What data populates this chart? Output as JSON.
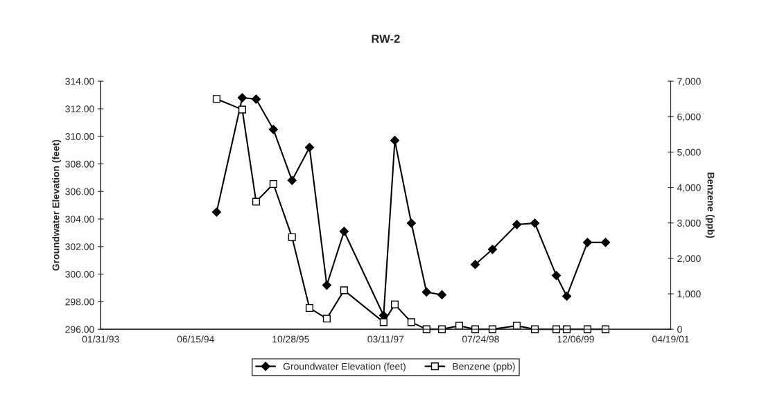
{
  "chart_data": {
    "type": "line",
    "title": "RW-2",
    "ylabel": "Groundwater Elevation (feet)",
    "y2label": "Benzene (ppb)",
    "x": [
      "1994-10-03",
      "1995-02-15",
      "1995-04-29",
      "1995-07-29",
      "1995-11-04",
      "1996-02-04",
      "1996-05-05",
      "1996-08-04",
      "1997-02-28",
      "1997-04-28",
      "1997-07-24",
      "1997-10-12",
      "1998-01-01",
      "1998-04-02",
      "1998-06-25",
      "1998-09-24",
      "1999-01-30",
      "1999-05-05",
      "1999-08-26",
      "1999-10-20",
      "2000-02-06",
      "2000-05-11"
    ],
    "series": [
      {
        "name": "Groundwater Elevation (feet)",
        "color": "#000000",
        "marker": "diamond",
        "values": [
          304.5,
          312.8,
          312.7,
          310.5,
          306.8,
          309.2,
          299.2,
          303.1,
          297.0,
          309.7,
          303.7,
          298.7,
          298.5,
          null,
          300.7,
          301.8,
          303.6,
          303.7,
          299.9,
          298.4,
          302.3,
          302.3
        ]
      },
      {
        "name": "Benzene (ppb)",
        "color": "#000000",
        "marker": "square",
        "axis": "y2",
        "values": [
          6500,
          6200,
          3600,
          4100,
          2600,
          600,
          300,
          1100,
          200,
          700,
          200,
          0,
          0,
          100,
          0,
          0,
          100,
          0,
          0,
          0,
          0,
          0
        ]
      }
    ],
    "xlim": [
      "1993-01-31",
      "2001-04-19"
    ],
    "xticks": [
      {
        "value": "1993-01-31",
        "label": "01/31/93"
      },
      {
        "value": "1994-06-15",
        "label": "06/15/94"
      },
      {
        "value": "1995-10-28",
        "label": "10/28/95"
      },
      {
        "value": "1997-03-11",
        "label": "03/11/97"
      },
      {
        "value": "1998-07-24",
        "label": "07/24/98"
      },
      {
        "value": "1999-12-06",
        "label": "12/06/99"
      },
      {
        "value": "2001-04-19",
        "label": "04/19/01"
      }
    ],
    "ylim": [
      296,
      314
    ],
    "yticks": [
      {
        "value": 296,
        "label": "296.00"
      },
      {
        "value": 298,
        "label": "298.00"
      },
      {
        "value": 300,
        "label": "300.00"
      },
      {
        "value": 302,
        "label": "302.00"
      },
      {
        "value": 304,
        "label": "304.00"
      },
      {
        "value": 306,
        "label": "306.00"
      },
      {
        "value": 308,
        "label": "308.00"
      },
      {
        "value": 310,
        "label": "310.00"
      },
      {
        "value": 312,
        "label": "312.00"
      },
      {
        "value": 314,
        "label": "314.00"
      }
    ],
    "y2lim": [
      0,
      7000
    ],
    "y2ticks": [
      0,
      {
        "value": 1000,
        "label": "1,000"
      },
      {
        "value": 2000,
        "label": "2,000"
      },
      {
        "value": 3000,
        "label": "3,000"
      },
      {
        "value": 4000,
        "label": "4,000"
      },
      {
        "value": 5000,
        "label": "5,000"
      },
      {
        "value": 6000,
        "label": "6,000"
      },
      {
        "value": 7000,
        "label": "7,000"
      }
    ],
    "legend": "bottom",
    "line_style": "solid"
  }
}
